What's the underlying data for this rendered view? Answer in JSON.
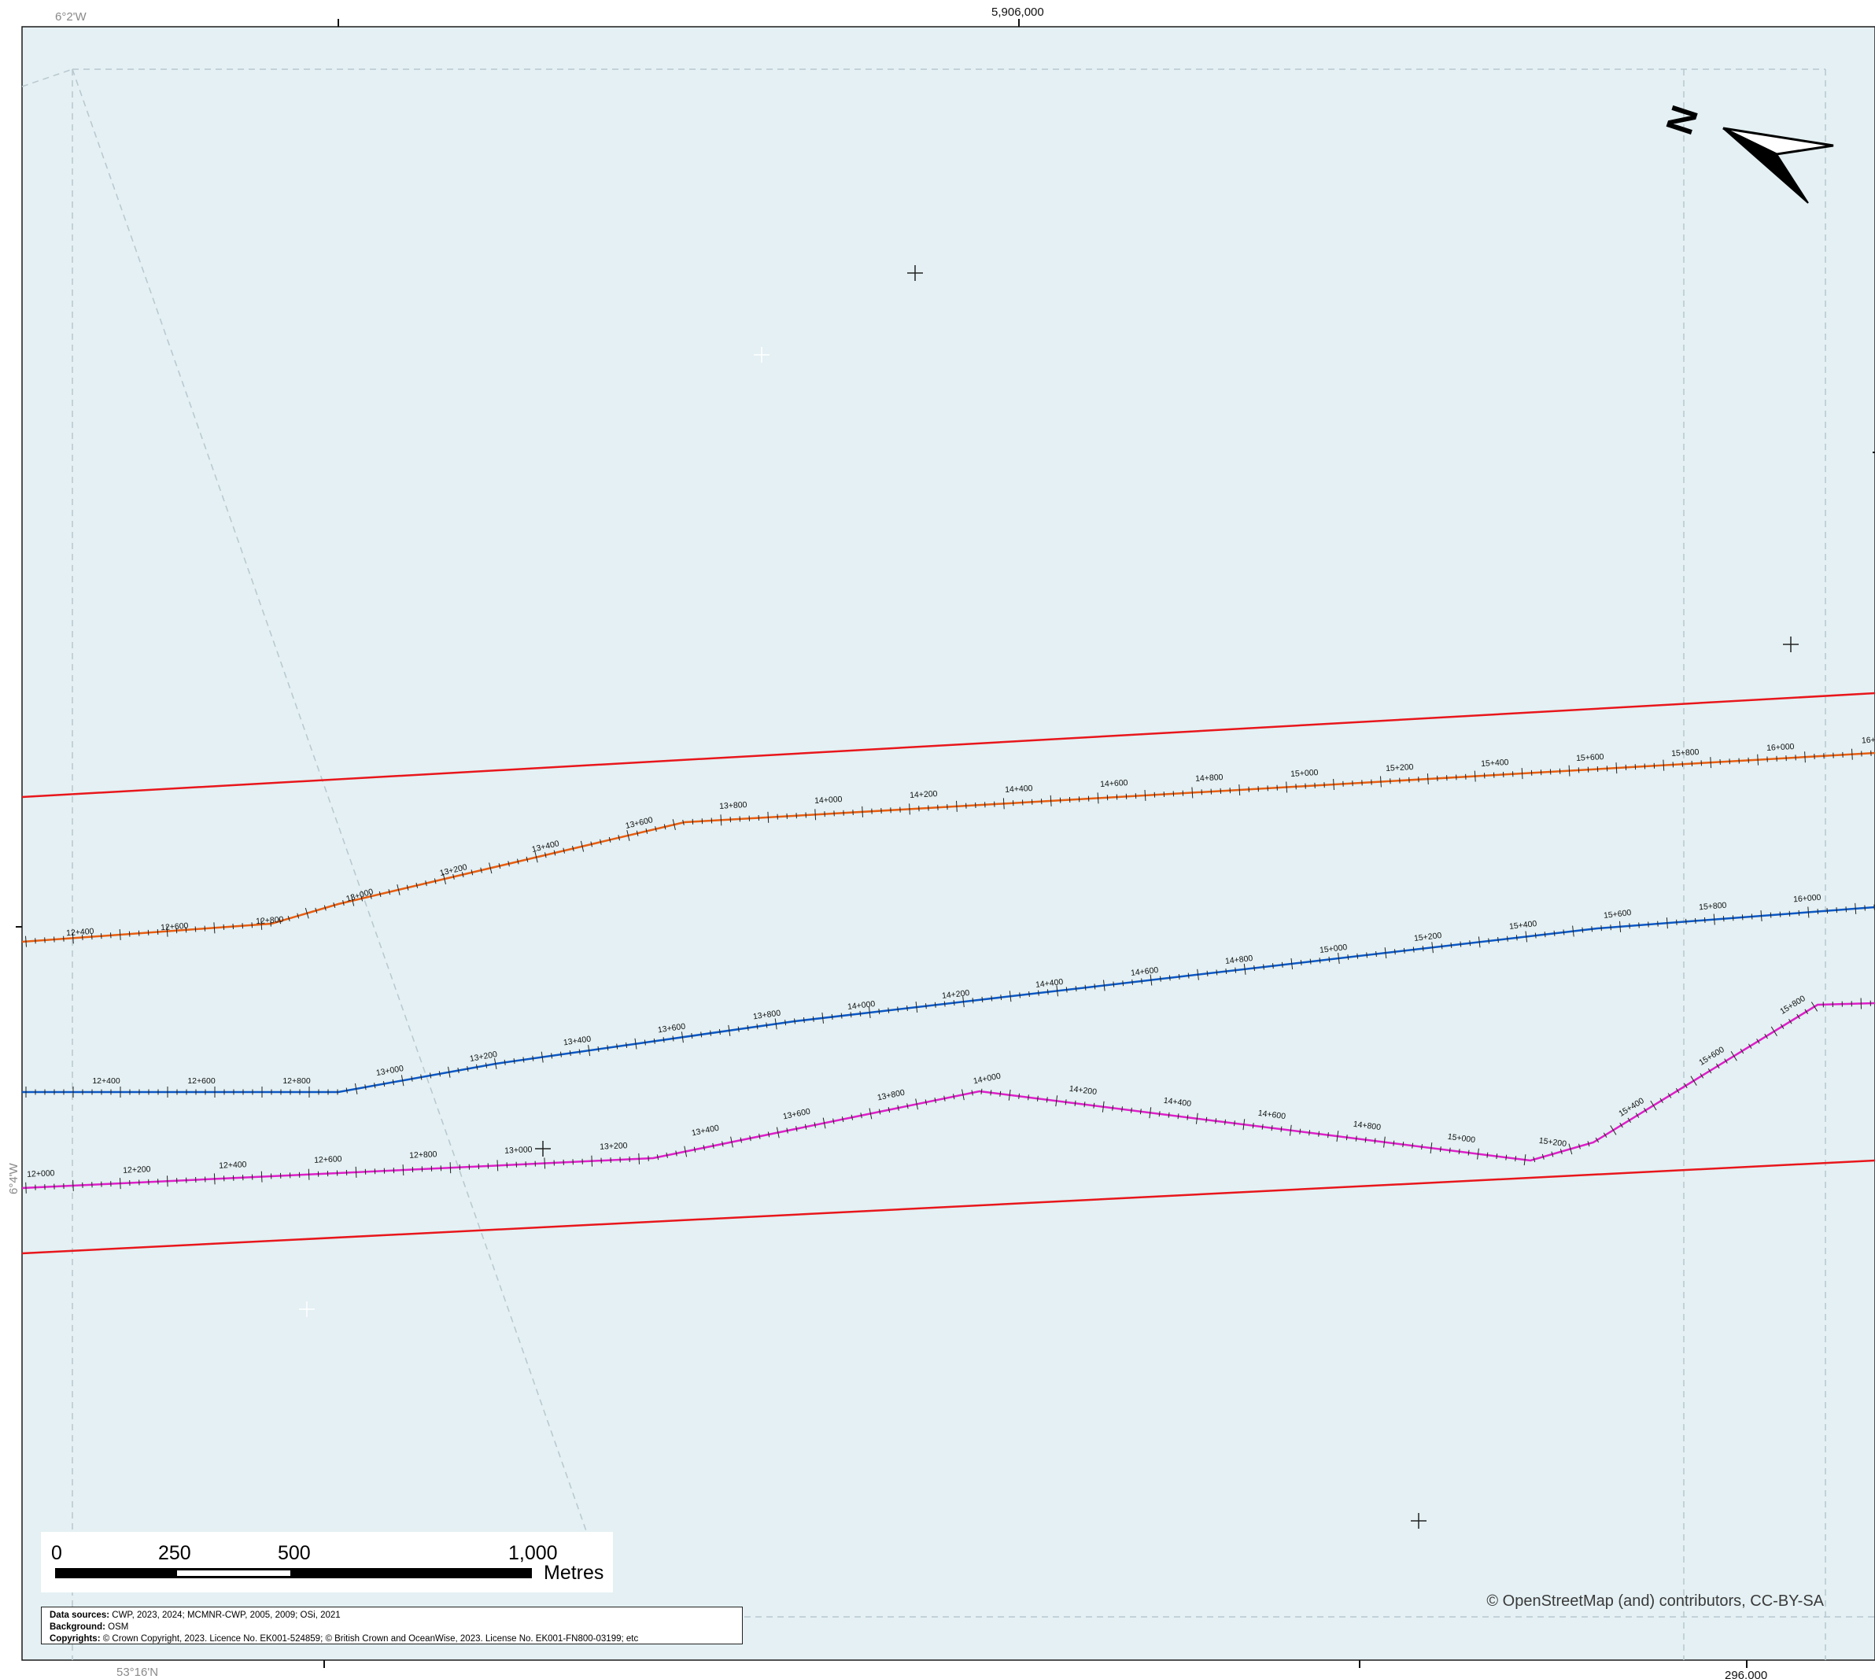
{
  "map": {
    "background_color": "#e4f0f3",
    "graticule_labels": {
      "lon_top": "6°2'W",
      "lon_left": "6°4'W",
      "lat_bottom": "53°16'N"
    },
    "grid_labels": {
      "northing_top": "5,906,000",
      "easting_bottom": "296,000"
    },
    "north_arrow": "north-arrow-icon",
    "north_letter": "N",
    "boundary_color": "#e8161b",
    "routes": [
      {
        "color": "#e85d10",
        "chainage": [
          "12+400",
          "12+600",
          "12+800",
          "13+000",
          "13+200",
          "13+400",
          "13+600",
          "13+800",
          "14+000",
          "14+200",
          "14+400",
          "14+600",
          "14+800",
          "15+000",
          "15+200",
          "15+400",
          "15+600",
          "15+800",
          "16+000",
          "16+"
        ]
      },
      {
        "color": "#0b57c4",
        "chainage": [
          "12+400",
          "12+600",
          "12+800",
          "13+000",
          "13+200",
          "13+400",
          "13+600",
          "13+800",
          "14+000",
          "14+200",
          "14+400",
          "14+600",
          "14+800",
          "15+000",
          "15+200",
          "15+400",
          "15+600",
          "15+800",
          "16+000"
        ]
      },
      {
        "color": "#dd1fc8",
        "chainage": [
          "12+000",
          "12+200",
          "12+400",
          "12+600",
          "12+800",
          "13+000",
          "13+200",
          "13+400",
          "13+600",
          "13+800",
          "14+000",
          "14+200",
          "14+400",
          "14+600",
          "14+800",
          "15+000",
          "15+200",
          "15+400",
          "15+600",
          "15+800"
        ]
      }
    ]
  },
  "scale_bar": {
    "labels": [
      "0",
      "250",
      "500",
      "1,000"
    ],
    "unit": "Metres"
  },
  "sources": {
    "data_sources_label": "Data sources:",
    "data_sources": "CWP, 2023, 2024; MCMNR-CWP, 2005, 2009; OSi, 2021",
    "background_label": "Background:",
    "background": "OSM",
    "copyrights_label": "Copyrights:",
    "copyrights": "© Crown Copyright, 2023. Licence No. EK001-524859; © British Crown and OceanWise, 2023. License No. EK001-FN800-03199; etc"
  },
  "attribution": "© OpenStreetMap (and) contributors, CC-BY-SA"
}
